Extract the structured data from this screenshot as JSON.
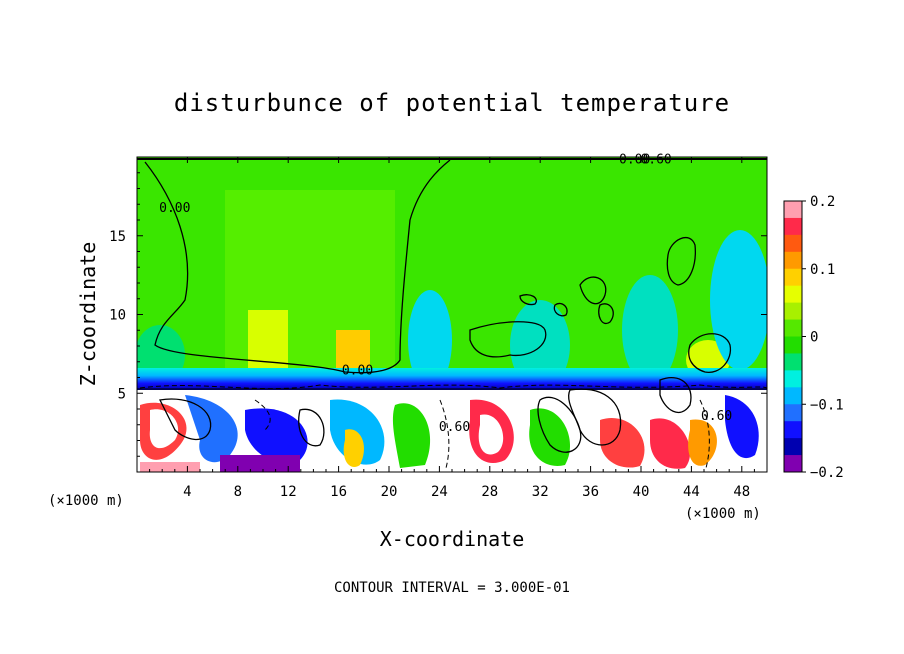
{
  "chart_data": {
    "type": "heatmap",
    "title": "disturbunce of potential temperature",
    "xlabel": "X-coordinate",
    "ylabel": "Z-coordinate",
    "x_unit": "(×1000 m)",
    "x_unit_right": "(×1000 m)",
    "footer": "CONTOUR INTERVAL = 3.000E-01",
    "xlim": [
      0,
      50
    ],
    "ylim": [
      0,
      20
    ],
    "x_ticks": [
      4,
      8,
      12,
      16,
      20,
      24,
      28,
      32,
      36,
      40,
      44,
      48
    ],
    "x_tick_labels": [
      "4",
      "8",
      "12",
      "16",
      "20",
      "24",
      "28",
      "32",
      "36",
      "40",
      "44",
      "48"
    ],
    "y_ticks": [
      5,
      10,
      15
    ],
    "y_tick_labels": [
      "5",
      "10",
      "15"
    ],
    "colorbar": {
      "min": -0.2,
      "max": 0.2,
      "tick_values": [
        0.2,
        0.1,
        0,
        -0.1,
        -0.2
      ],
      "tick_labels": [
        "0.2",
        "0.1",
        "0",
        "−0.1",
        "−0.2"
      ],
      "colors": [
        "#ff9fb0",
        "#ff2a4a",
        "#ff5a10",
        "#ff9a00",
        "#ffd000",
        "#e6ff00",
        "#a8f000",
        "#55e800",
        "#22dd00",
        "#00e070",
        "#00f0e0",
        "#00b8ff",
        "#2070ff",
        "#1010ff",
        "#0000b0",
        "#8000b0"
      ]
    },
    "contour_labels": [
      {
        "text": "0.00",
        "x": 17.5,
        "y": 6.2
      },
      {
        "text": "0.00",
        "x": 3.0,
        "y": 16.5
      },
      {
        "text": "0.00",
        "x": 39.5,
        "y": 19.6
      },
      {
        "text": "0.60",
        "x": 41.2,
        "y": 19.6
      },
      {
        "text": "0.60",
        "x": 46.0,
        "y": 3.3
      },
      {
        "text": "0.60",
        "x": 25.2,
        "y": 2.6
      }
    ]
  }
}
